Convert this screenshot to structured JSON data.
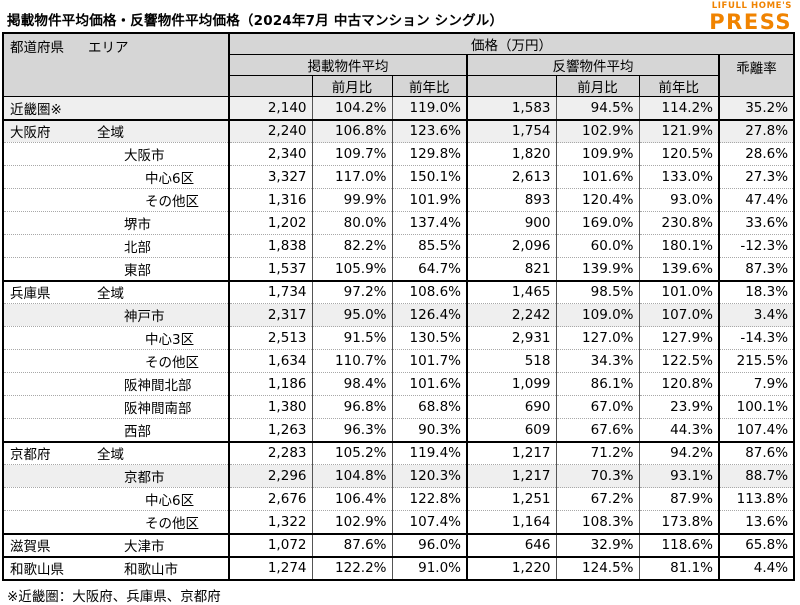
{
  "title": "掲載物件平均価格・反響物件平均価格（2024年7月 中古マンション シングル）",
  "logo": {
    "brand": "LIFULL HOME'S",
    "name": "PRESS"
  },
  "header": {
    "pref": "都道府県",
    "area": "エリア",
    "price_unit": "価格（万円）",
    "listed": "掲載物件平均",
    "inquiry": "反響物件平均",
    "mom": "前月比",
    "yoy": "前年比",
    "divergence": "乖離率"
  },
  "footnote": "※近畿圏：大阪府、兵庫県、京都府",
  "colors": {
    "logo_orange": "#f08300",
    "header_bg": "#d6d6d6",
    "row_shaded": "#efefef",
    "border": "#000000"
  },
  "chart_data": {
    "type": "table",
    "title": "掲載物件平均価格・反響物件平均価格（2024年7月 中古マンション シングル）",
    "columns": [
      "都道府県",
      "エリア",
      "掲載物件平均 価格(万円)",
      "掲載 前月比",
      "掲載 前年比",
      "反響物件平均 価格(万円)",
      "反響 前月比",
      "反響 前年比",
      "乖離率"
    ],
    "rows": [
      {
        "pref": "近畿圏※",
        "area": "",
        "indent": 0,
        "shaded": true,
        "group_start": false,
        "cells": [
          "2,140",
          "104.2%",
          "119.0%",
          "1,583",
          "94.5%",
          "114.2%",
          "35.2%"
        ]
      },
      {
        "pref": "大阪府",
        "area": "全域",
        "indent": 1,
        "shaded": true,
        "group_start": true,
        "cells": [
          "2,240",
          "106.8%",
          "123.6%",
          "1,754",
          "102.9%",
          "121.9%",
          "27.8%"
        ]
      },
      {
        "pref": "",
        "area": "大阪市",
        "indent": 2,
        "shaded": false,
        "group_start": false,
        "cells": [
          "2,340",
          "109.7%",
          "129.8%",
          "1,820",
          "109.9%",
          "120.5%",
          "28.6%"
        ]
      },
      {
        "pref": "",
        "area": "中心6区",
        "indent": 3,
        "shaded": false,
        "group_start": false,
        "cells": [
          "3,327",
          "117.0%",
          "150.1%",
          "2,613",
          "101.6%",
          "133.0%",
          "27.3%"
        ]
      },
      {
        "pref": "",
        "area": "その他区",
        "indent": 3,
        "shaded": false,
        "group_start": false,
        "cells": [
          "1,316",
          "99.9%",
          "101.9%",
          "893",
          "120.4%",
          "93.0%",
          "47.4%"
        ]
      },
      {
        "pref": "",
        "area": "堺市",
        "indent": 2,
        "shaded": false,
        "group_start": false,
        "cells": [
          "1,202",
          "80.0%",
          "137.4%",
          "900",
          "169.0%",
          "230.8%",
          "33.6%"
        ]
      },
      {
        "pref": "",
        "area": "北部",
        "indent": 2,
        "shaded": false,
        "group_start": false,
        "cells": [
          "1,838",
          "82.2%",
          "85.5%",
          "2,096",
          "60.0%",
          "180.1%",
          "-12.3%"
        ]
      },
      {
        "pref": "",
        "area": "東部",
        "indent": 2,
        "shaded": false,
        "group_start": false,
        "cells": [
          "1,537",
          "105.9%",
          "64.7%",
          "821",
          "139.9%",
          "139.6%",
          "87.3%"
        ]
      },
      {
        "pref": "兵庫県",
        "area": "全域",
        "indent": 1,
        "shaded": false,
        "group_start": true,
        "cells": [
          "1,734",
          "97.2%",
          "108.6%",
          "1,465",
          "98.5%",
          "101.0%",
          "18.3%"
        ]
      },
      {
        "pref": "",
        "area": "神戸市",
        "indent": 2,
        "shaded": true,
        "group_start": false,
        "cells": [
          "2,317",
          "95.0%",
          "126.4%",
          "2,242",
          "109.0%",
          "107.0%",
          "3.4%"
        ]
      },
      {
        "pref": "",
        "area": "中心3区",
        "indent": 3,
        "shaded": false,
        "group_start": false,
        "cells": [
          "2,513",
          "91.5%",
          "130.5%",
          "2,931",
          "127.0%",
          "127.9%",
          "-14.3%"
        ]
      },
      {
        "pref": "",
        "area": "その他区",
        "indent": 3,
        "shaded": false,
        "group_start": false,
        "cells": [
          "1,634",
          "110.7%",
          "101.7%",
          "518",
          "34.3%",
          "122.5%",
          "215.5%"
        ]
      },
      {
        "pref": "",
        "area": "阪神間北部",
        "indent": 2,
        "shaded": false,
        "group_start": false,
        "cells": [
          "1,186",
          "98.4%",
          "101.6%",
          "1,099",
          "86.1%",
          "120.8%",
          "7.9%"
        ]
      },
      {
        "pref": "",
        "area": "阪神間南部",
        "indent": 2,
        "shaded": false,
        "group_start": false,
        "cells": [
          "1,380",
          "96.8%",
          "68.8%",
          "690",
          "67.0%",
          "23.9%",
          "100.1%"
        ]
      },
      {
        "pref": "",
        "area": "西部",
        "indent": 2,
        "shaded": false,
        "group_start": false,
        "cells": [
          "1,263",
          "96.3%",
          "90.3%",
          "609",
          "67.6%",
          "44.3%",
          "107.4%"
        ]
      },
      {
        "pref": "京都府",
        "area": "全域",
        "indent": 1,
        "shaded": false,
        "group_start": true,
        "cells": [
          "2,283",
          "105.2%",
          "119.4%",
          "1,217",
          "71.2%",
          "94.2%",
          "87.6%"
        ]
      },
      {
        "pref": "",
        "area": "京都市",
        "indent": 2,
        "shaded": true,
        "group_start": false,
        "cells": [
          "2,296",
          "104.8%",
          "120.3%",
          "1,217",
          "70.3%",
          "93.1%",
          "88.7%"
        ]
      },
      {
        "pref": "",
        "area": "中心6区",
        "indent": 3,
        "shaded": false,
        "group_start": false,
        "cells": [
          "2,676",
          "106.4%",
          "122.8%",
          "1,251",
          "67.2%",
          "87.9%",
          "113.8%"
        ]
      },
      {
        "pref": "",
        "area": "その他区",
        "indent": 3,
        "shaded": false,
        "group_start": false,
        "cells": [
          "1,322",
          "102.9%",
          "107.4%",
          "1,164",
          "108.3%",
          "173.8%",
          "13.6%"
        ]
      },
      {
        "pref": "滋賀県",
        "area": "大津市",
        "indent": 2,
        "shaded": false,
        "group_start": true,
        "cells": [
          "1,072",
          "87.6%",
          "96.0%",
          "646",
          "32.9%",
          "118.6%",
          "65.8%"
        ]
      },
      {
        "pref": "和歌山県",
        "area": "和歌山市",
        "indent": 2,
        "shaded": false,
        "group_start": true,
        "cells": [
          "1,274",
          "122.2%",
          "91.0%",
          "1,220",
          "124.5%",
          "81.1%",
          "4.4%"
        ]
      }
    ]
  }
}
